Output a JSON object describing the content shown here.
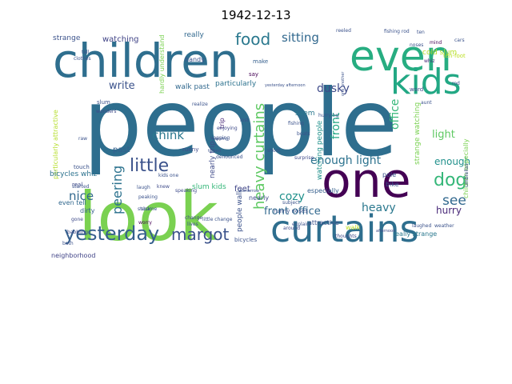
{
  "title": "1942-12-13",
  "words": [
    {
      "text": "people",
      "color": "#2e6e8e"
    },
    {
      "text": "look",
      "color": "#7ad151"
    },
    {
      "text": "children",
      "color": "#2e6e8e"
    },
    {
      "text": "even",
      "color": "#27ad81"
    },
    {
      "text": "one",
      "color": "#440154"
    },
    {
      "text": "curtains",
      "color": "#2e6e8e"
    },
    {
      "text": "kids",
      "color": "#22a884"
    },
    {
      "text": "yesterday",
      "color": "#355f8d"
    },
    {
      "text": "margot",
      "color": "#3b528b"
    },
    {
      "text": "food",
      "color": "#2a788e"
    },
    {
      "text": "sitting",
      "color": "#31688e"
    },
    {
      "text": "little",
      "color": "#3b528b"
    },
    {
      "text": "dog",
      "color": "#35b779"
    },
    {
      "text": "see",
      "color": "#31688e"
    },
    {
      "text": "nice",
      "color": "#31688e"
    },
    {
      "text": "peering",
      "color": "#2c728e"
    },
    {
      "text": "heavy curtains",
      "color": "#5ec962"
    },
    {
      "text": "front office",
      "color": "#31688e"
    },
    {
      "text": "cozy",
      "color": "#21918c"
    },
    {
      "text": "front",
      "color": "#22a884"
    },
    {
      "text": "office",
      "color": "#35b779"
    },
    {
      "text": "enough light",
      "color": "#2c728e"
    },
    {
      "text": "chink",
      "color": "#2a788e"
    },
    {
      "text": "write",
      "color": "#3b528b"
    },
    {
      "text": "heavy",
      "color": "#2a788e"
    },
    {
      "text": "dusky",
      "color": "#3e4a89"
    },
    {
      "text": "light",
      "color": "#5ec962"
    },
    {
      "text": "enough",
      "color": "#21918c"
    },
    {
      "text": "hurry",
      "color": "#482878"
    },
    {
      "text": "watching",
      "color": "#414487"
    },
    {
      "text": "strange",
      "color": "#3b528b"
    },
    {
      "text": "really",
      "color": "#31688e"
    },
    {
      "text": "past",
      "color": "#355f8d"
    },
    {
      "text": "feet",
      "color": "#404688"
    },
    {
      "text": "seem",
      "color": "#2a788e"
    },
    {
      "text": "walk past",
      "color": "#31688e"
    },
    {
      "text": "particularly",
      "color": "#2c728e"
    },
    {
      "text": "people walk",
      "color": "#3b528b"
    },
    {
      "text": "nearly trip",
      "color": "#3e4a89"
    },
    {
      "text": "watching people",
      "color": "#21918c"
    },
    {
      "text": "strange watching",
      "color": "#7ad151"
    },
    {
      "text": "children especially",
      "color": "#7ad151"
    },
    {
      "text": "particularly attractive",
      "color": "#b5de2b"
    },
    {
      "text": "bicycles whiz",
      "color": "#2c728e"
    },
    {
      "text": "neighborhood",
      "color": "#414487"
    },
    {
      "text": "even tell",
      "color": "#31688e"
    },
    {
      "text": "slum kids",
      "color": "#35b779"
    },
    {
      "text": "really strange",
      "color": "#2a788e"
    },
    {
      "text": "especially",
      "color": "#355f8d"
    },
    {
      "text": "attractive",
      "color": "#3b528b"
    },
    {
      "text": "pole",
      "color": "#3b528b"
    },
    {
      "text": "bike",
      "color": "#3b528b"
    },
    {
      "text": "walk",
      "color": "#bddf26"
    },
    {
      "text": "dirty",
      "color": "#355f8d"
    },
    {
      "text": "nearly",
      "color": "#3e4a89"
    },
    {
      "text": "runny noses",
      "color": "#3b528b"
    },
    {
      "text": "handy",
      "color": "#3b528b"
    },
    {
      "text": "trip",
      "color": "#482878"
    },
    {
      "text": "real",
      "color": "#3e4a89"
    },
    {
      "text": "touch",
      "color": "#3b528b"
    },
    {
      "text": "bicycles",
      "color": "#3b528b"
    },
    {
      "text": "slum",
      "color": "#3b528b"
    },
    {
      "text": "runny",
      "color": "#3e4a89"
    },
    {
      "text": "say",
      "color": "#440154"
    },
    {
      "text": "make",
      "color": "#355f8d"
    },
    {
      "text": "gone",
      "color": "#3e4a89"
    },
    {
      "text": "tell",
      "color": "#3b528b"
    },
    {
      "text": "hardly understand",
      "color": "#7ad151"
    },
    {
      "text": "clothes",
      "color": "#3b528b"
    },
    {
      "text": "bath",
      "color": "#3b528b"
    },
    {
      "text": "noses",
      "color": "#3b528b"
    },
    {
      "text": "wonders",
      "color": "#3e4a89"
    },
    {
      "text": "mind",
      "color": "#440154"
    },
    {
      "text": "whiz",
      "color": "#482878"
    },
    {
      "text": "word",
      "color": "#3e4a89"
    },
    {
      "text": "aunt",
      "color": "#3b528b"
    },
    {
      "text": "speaking",
      "color": "#3e4a89"
    },
    {
      "text": "change",
      "color": "#3e4a89"
    },
    {
      "text": "lives",
      "color": "#3b528b"
    },
    {
      "text": "thoughts",
      "color": "#3e4a89"
    },
    {
      "text": "around",
      "color": "#3e4a89"
    },
    {
      "text": "afternoon",
      "color": "#3e4a89"
    },
    {
      "text": "yesterday afternoon",
      "color": "#3b528b"
    },
    {
      "text": "fishing",
      "color": "#3b528b"
    },
    {
      "text": "boats",
      "color": "#3b528b"
    },
    {
      "text": "shoot",
      "color": "#3b528b"
    },
    {
      "text": "laugh",
      "color": "#3b528b"
    },
    {
      "text": "stuck",
      "color": "#3b528b"
    },
    {
      "text": "babbling",
      "color": "#3e4a89"
    },
    {
      "text": "enjoying",
      "color": "#3e4a89"
    },
    {
      "text": "surprise",
      "color": "#3e4a89"
    },
    {
      "text": "shame",
      "color": "#3b528b"
    },
    {
      "text": "knew",
      "color": "#3e4a89"
    },
    {
      "text": "started",
      "color": "#3b528b"
    },
    {
      "text": "peaking",
      "color": "#3b528b"
    },
    {
      "text": "cold slum",
      "color": "#b5de2b"
    },
    {
      "text": "fishing rod",
      "color": "#3b528b"
    },
    {
      "text": "reeled",
      "color": "#3b528b"
    },
    {
      "text": "rod",
      "color": "#3b528b"
    },
    {
      "text": "raw",
      "color": "#3b528b"
    },
    {
      "text": "explain",
      "color": "#3b528b"
    },
    {
      "text": "lost",
      "color": "#3b528b"
    },
    {
      "text": "tomorrow",
      "color": "#3b528b"
    },
    {
      "text": "ten",
      "color": "#3b528b"
    },
    {
      "text": "cars",
      "color": "#3b528b"
    },
    {
      "text": "ten-foot",
      "color": "#bddf26"
    },
    {
      "text": "realize",
      "color": "#3b528b"
    },
    {
      "text": "kids one",
      "color": "#3b528b"
    },
    {
      "text": "umbrellas",
      "color": "#3e4a89"
    },
    {
      "text": "weather",
      "color": "#3b528b"
    },
    {
      "text": "subject",
      "color": "#3b528b"
    },
    {
      "text": "vapping",
      "color": "#3b528b"
    },
    {
      "text": "yapping",
      "color": "#3b528b"
    },
    {
      "text": "laughed",
      "color": "#3b528b"
    },
    {
      "text": "hurrying",
      "color": "#3b528b"
    },
    {
      "text": "tipped",
      "color": "#3b528b"
    },
    {
      "text": "denounced",
      "color": "#3b528b"
    },
    {
      "text": "one another",
      "color": "#3b528b"
    },
    {
      "text": "little change",
      "color": "#3b528b"
    },
    {
      "text": "worry",
      "color": "#440154"
    }
  ]
}
